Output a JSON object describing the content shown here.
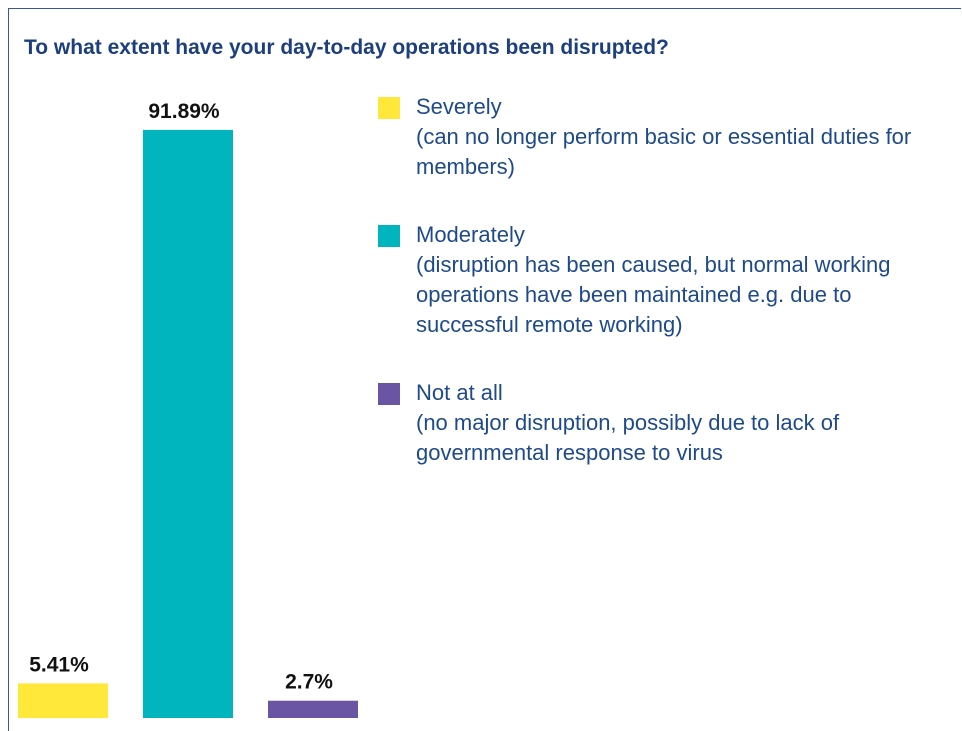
{
  "chart_data": {
    "type": "bar",
    "title": "To what extent have your day-to-day operations been disrupted?",
    "categories": [
      "Severely",
      "Moderately",
      "Not at all"
    ],
    "descriptions": [
      "(can no longer perform basic or essential duties for members)",
      "(disruption has been caused, but normal working operations have been maintained e.g. due to successful remote working)",
      "(no major disruption, possibly due to lack of governmental response to virus"
    ],
    "values": [
      5.41,
      91.89,
      2.7
    ],
    "value_labels": [
      "5.41%",
      "91.89%",
      "2.7%"
    ],
    "colors": [
      "#ffe83a",
      "#00b5bd",
      "#6a55a5"
    ],
    "ylim": [
      0,
      100
    ]
  }
}
